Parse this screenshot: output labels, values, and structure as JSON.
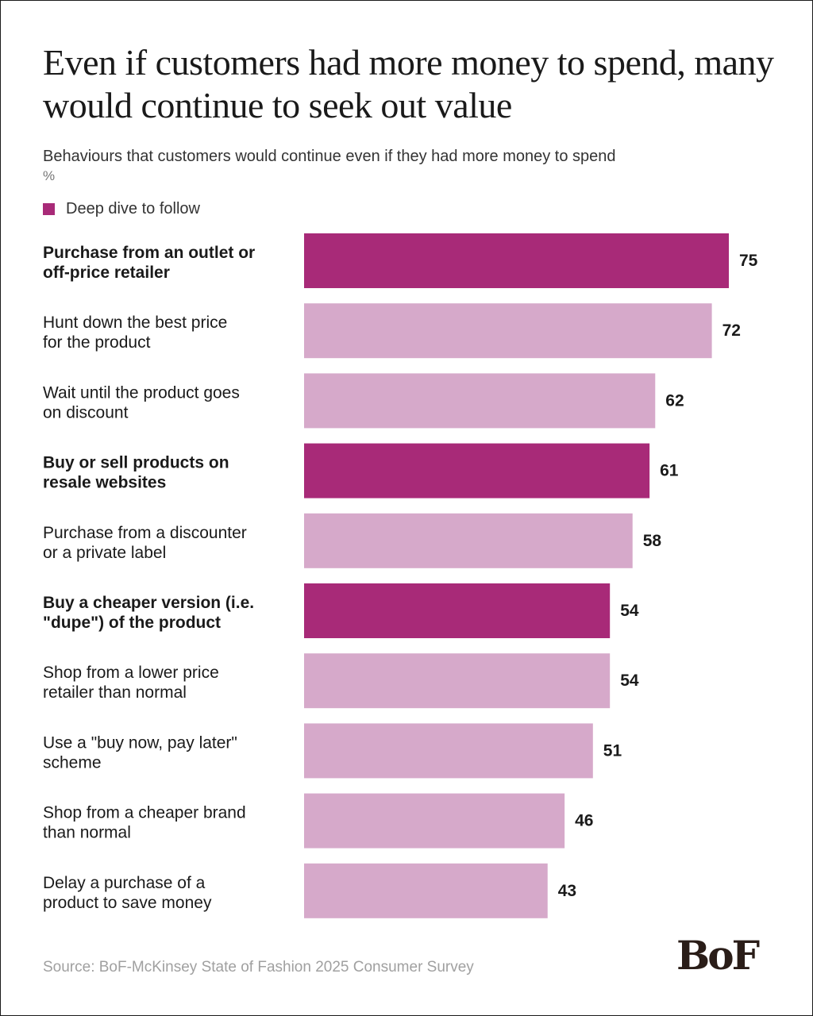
{
  "header": {
    "title": "Even if customers had more money to spend, many would continue to seek out value",
    "subtitle": "Behaviours that customers would continue even if they had more money to spend",
    "unit": "%"
  },
  "legend": {
    "label": "Deep dive to follow",
    "color": "#a82a78"
  },
  "footer": {
    "source": "Source: BoF-McKinsey State of Fashion 2025 Consumer Survey",
    "logo": "BoF"
  },
  "colors": {
    "highlight": "#a82a78",
    "normal": "#d6a9ca"
  },
  "chart_data": {
    "type": "bar",
    "orientation": "horizontal",
    "title": "Even if customers had more money to spend, many would continue to seek out value",
    "subtitle": "Behaviours that customers would continue even if they had more money to spend",
    "unit": "%",
    "xlim": [
      0,
      75
    ],
    "grid": false,
    "legend_position": "top-left",
    "categories": [
      [
        "Purchase from an outlet or",
        "off-price retailer"
      ],
      [
        "Hunt down the best price",
        "for the product"
      ],
      [
        "Wait until the product goes",
        "on discount"
      ],
      [
        "Buy or sell products on",
        "resale websites"
      ],
      [
        "Purchase from a discounter",
        "or a private label"
      ],
      [
        "Buy a cheaper version (i.e.",
        "\"dupe\") of the product"
      ],
      [
        "Shop from a lower price",
        "retailer than normal"
      ],
      [
        "Use a \"buy now, pay later\"",
        "scheme"
      ],
      [
        "Shop from a cheaper brand",
        "than normal"
      ],
      [
        "Delay a purchase of a",
        "product to save money"
      ]
    ],
    "values": [
      75,
      72,
      62,
      61,
      58,
      54,
      54,
      51,
      46,
      43
    ],
    "highlighted": [
      true,
      false,
      false,
      true,
      false,
      true,
      false,
      false,
      false,
      false
    ]
  }
}
